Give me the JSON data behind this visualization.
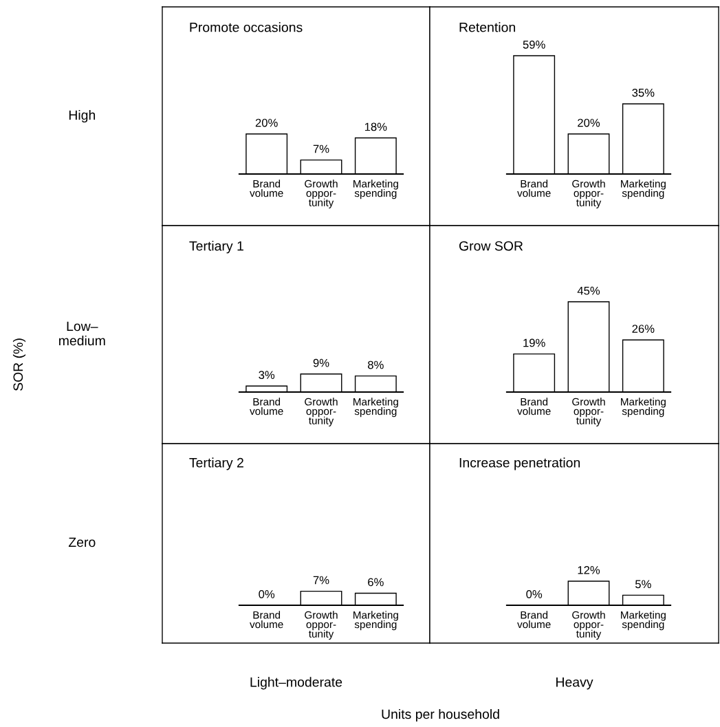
{
  "chart_data": [
    {
      "type": "bar",
      "title": "Promote occasions",
      "ylabel": "High",
      "categories": [
        "Brand\nvolume",
        "Growth\noppor-\ntunity",
        "Marketing\nspending"
      ],
      "values": [
        20,
        7,
        18
      ],
      "value_labels": [
        "20%",
        "7%",
        "18%"
      ],
      "color": "#ffffff"
    },
    {
      "type": "bar",
      "title": "Retention",
      "categories": [
        "Brand\nvolume",
        "Growth\noppor-\ntunity",
        "Marketing\nspending"
      ],
      "values": [
        59,
        20,
        35
      ],
      "value_labels": [
        "59%",
        "20%",
        "35%"
      ],
      "color": "#ffffff"
    },
    {
      "type": "bar",
      "title": "Tertiary 1",
      "ylabel": "Low–\nmedium",
      "categories": [
        "Brand\nvolume",
        "Growth\noppor-\ntunity",
        "Marketing\nspending"
      ],
      "values": [
        3,
        9,
        8
      ],
      "value_labels": [
        "3%",
        "9%",
        "8%"
      ],
      "color": "#ffffff"
    },
    {
      "type": "bar",
      "title": "Grow SOR",
      "categories": [
        "Brand\nvolume",
        "Growth\noppor-\ntunity",
        "Marketing\nspending"
      ],
      "values": [
        19,
        45,
        26
      ],
      "value_labels": [
        "19%",
        "45%",
        "26%"
      ],
      "color": "#ffffff"
    },
    {
      "type": "bar",
      "title": "Tertiary 2",
      "ylabel": "Zero",
      "xlabel": "Light–moderate",
      "categories": [
        "Brand\nvolume",
        "Growth\noppor-\ntunity",
        "Marketing\nspending"
      ],
      "values": [
        0,
        7,
        6
      ],
      "value_labels": [
        "0%",
        "7%",
        "6%"
      ],
      "color": "#ffffff"
    },
    {
      "type": "bar",
      "title": "Increase penetration",
      "xlabel": "Heavy",
      "categories": [
        "Brand\nvolume",
        "Growth\noppor-\ntunity",
        "Marketing\nspending"
      ],
      "values": [
        0,
        12,
        5
      ],
      "value_labels": [
        "0%",
        "12%",
        "5%"
      ],
      "color": "#ffffff"
    },
    {
      "type": "other",
      "xlabel": "Units per household",
      "ylabel": "SOR (%)"
    }
  ]
}
